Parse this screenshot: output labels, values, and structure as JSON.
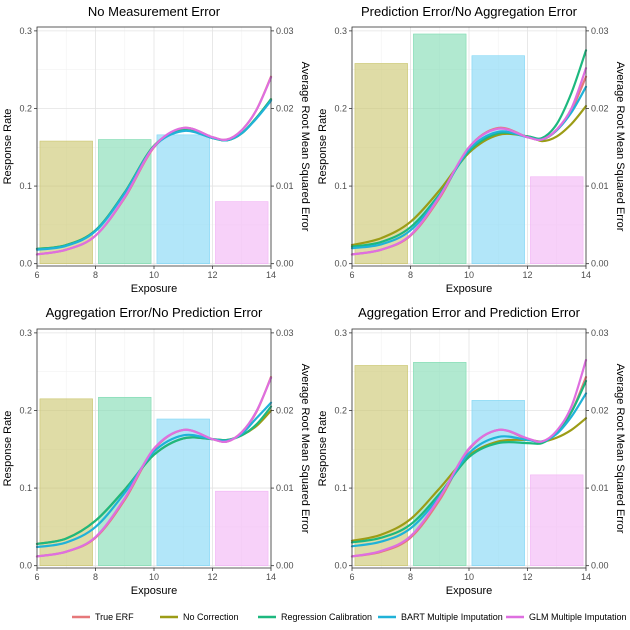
{
  "chart_data": {
    "type": "line+bar",
    "x_label": "Exposure",
    "y_left_label": "Response Rate",
    "y_right_label": "Average Root Mean Squared Error",
    "x_ticks": [
      "6",
      "8",
      "10",
      "12",
      "14"
    ],
    "x_range": [
      6,
      14
    ],
    "y_left_ticks": [
      "0.0",
      "0.1",
      "0.2",
      "0.3"
    ],
    "y_left_range": [
      -0.003,
      0.305
    ],
    "y_right_ticks": [
      "0.00",
      "0.01",
      "0.02",
      "0.03"
    ],
    "y_right_range": [
      -0.0003,
      0.0305
    ],
    "grid": true,
    "legend_position": "bottom",
    "legend": [
      {
        "name": "True ERF",
        "color": "#e6787a"
      },
      {
        "name": "No Correction",
        "color": "#9c9c16"
      },
      {
        "name": "Regression Calibration",
        "color": "#1db87f"
      },
      {
        "name": "BART Multiple Imputation",
        "color": "#20b2d8"
      },
      {
        "name": "GLM Multiple Imputation",
        "color": "#de6fe0"
      }
    ],
    "curve_x": [
      6,
      7,
      8,
      9,
      10,
      11,
      12,
      12.5,
      13,
      13.5,
      14
    ],
    "panels": [
      {
        "title": "No Measurement Error",
        "bars": [
          {
            "x0": 6.1,
            "x1": 7.9,
            "value": 0.0158,
            "color": "#c9c46b"
          },
          {
            "x0": 8.1,
            "x1": 9.9,
            "value": 0.016,
            "color": "#7ddbb0"
          },
          {
            "x0": 10.1,
            "x1": 11.9,
            "value": 0.0166,
            "color": "#7fd6f5"
          },
          {
            "x0": 12.1,
            "x1": 13.9,
            "value": 0.008,
            "color": "#f2b3f5"
          }
        ],
        "series": [
          {
            "name": "True ERF",
            "y": [
              0.012,
              0.018,
              0.036,
              0.085,
              0.15,
              0.175,
              0.163,
              0.16,
              0.172,
              0.198,
              0.241
            ]
          },
          {
            "name": "No Correction",
            "y": [
              0.019,
              0.024,
              0.043,
              0.092,
              0.152,
              0.172,
              0.162,
              0.159,
              0.168,
              0.188,
              0.212
            ]
          },
          {
            "name": "Regression Calibration",
            "y": [
              0.019,
              0.024,
              0.043,
              0.092,
              0.152,
              0.172,
              0.162,
              0.159,
              0.168,
              0.188,
              0.212
            ]
          },
          {
            "name": "BART Multiple Imputation",
            "y": [
              0.018,
              0.023,
              0.042,
              0.091,
              0.151,
              0.171,
              0.162,
              0.159,
              0.168,
              0.187,
              0.21
            ]
          },
          {
            "name": "GLM Multiple Imputation",
            "y": [
              0.012,
              0.018,
              0.036,
              0.086,
              0.151,
              0.175,
              0.163,
              0.16,
              0.172,
              0.198,
              0.24
            ]
          }
        ]
      },
      {
        "title": "Prediction Error/No Aggregation Error",
        "bars": [
          {
            "x0": 6.1,
            "x1": 7.9,
            "value": 0.0258,
            "color": "#c9c46b"
          },
          {
            "x0": 8.1,
            "x1": 9.9,
            "value": 0.0296,
            "color": "#7ddbb0"
          },
          {
            "x0": 10.1,
            "x1": 11.9,
            "value": 0.0268,
            "color": "#7fd6f5"
          },
          {
            "x0": 12.1,
            "x1": 13.9,
            "value": 0.0112,
            "color": "#f2b3f5"
          }
        ],
        "series": [
          {
            "name": "True ERF",
            "y": [
              0.012,
              0.018,
              0.036,
              0.085,
              0.15,
              0.175,
              0.163,
              0.16,
              0.172,
              0.198,
              0.241
            ]
          },
          {
            "name": "No Correction",
            "y": [
              0.024,
              0.033,
              0.054,
              0.095,
              0.143,
              0.166,
              0.164,
              0.158,
              0.164,
              0.18,
              0.203
            ]
          },
          {
            "name": "Regression Calibration",
            "y": [
              0.022,
              0.028,
              0.047,
              0.09,
              0.145,
              0.168,
              0.164,
              0.162,
              0.18,
              0.22,
              0.275
            ]
          },
          {
            "name": "BART Multiple Imputation",
            "y": [
              0.02,
              0.025,
              0.043,
              0.088,
              0.147,
              0.17,
              0.163,
              0.16,
              0.172,
              0.195,
              0.228
            ]
          },
          {
            "name": "GLM Multiple Imputation",
            "y": [
              0.012,
              0.018,
              0.037,
              0.087,
              0.15,
              0.174,
              0.163,
              0.16,
              0.173,
              0.2,
              0.252
            ]
          }
        ]
      },
      {
        "title": "Aggregation Error/No Prediction Error",
        "bars": [
          {
            "x0": 6.1,
            "x1": 7.9,
            "value": 0.0215,
            "color": "#c9c46b"
          },
          {
            "x0": 8.1,
            "x1": 9.9,
            "value": 0.0217,
            "color": "#7ddbb0"
          },
          {
            "x0": 10.1,
            "x1": 11.9,
            "value": 0.0189,
            "color": "#7fd6f5"
          },
          {
            "x0": 12.1,
            "x1": 13.9,
            "value": 0.0096,
            "color": "#f2b3f5"
          }
        ],
        "series": [
          {
            "name": "True ERF",
            "y": [
              0.012,
              0.018,
              0.036,
              0.085,
              0.15,
              0.175,
              0.163,
              0.16,
              0.172,
              0.198,
              0.243
            ]
          },
          {
            "name": "No Correction",
            "y": [
              0.028,
              0.035,
              0.058,
              0.098,
              0.143,
              0.164,
              0.163,
              0.162,
              0.168,
              0.18,
              0.2
            ]
          },
          {
            "name": "Regression Calibration",
            "y": [
              0.028,
              0.035,
              0.058,
              0.098,
              0.143,
              0.164,
              0.163,
              0.162,
              0.168,
              0.182,
              0.205
            ]
          },
          {
            "name": "BART Multiple Imputation",
            "y": [
              0.024,
              0.03,
              0.05,
              0.094,
              0.147,
              0.168,
              0.163,
              0.161,
              0.17,
              0.19,
              0.21
            ]
          },
          {
            "name": "GLM Multiple Imputation",
            "y": [
              0.012,
              0.018,
              0.037,
              0.087,
              0.151,
              0.175,
              0.163,
              0.16,
              0.172,
              0.199,
              0.242
            ]
          }
        ]
      },
      {
        "title": "Aggregation Error and Prediction Error",
        "bars": [
          {
            "x0": 6.1,
            "x1": 7.9,
            "value": 0.0258,
            "color": "#c9c46b"
          },
          {
            "x0": 8.1,
            "x1": 9.9,
            "value": 0.0262,
            "color": "#7ddbb0"
          },
          {
            "x0": 10.1,
            "x1": 11.9,
            "value": 0.0213,
            "color": "#7fd6f5"
          },
          {
            "x0": 12.1,
            "x1": 13.9,
            "value": 0.0117,
            "color": "#f2b3f5"
          }
        ],
        "series": [
          {
            "name": "True ERF",
            "y": [
              0.012,
              0.018,
              0.036,
              0.085,
              0.15,
              0.175,
              0.163,
              0.16,
              0.172,
              0.198,
              0.243
            ]
          },
          {
            "name": "No Correction",
            "y": [
              0.032,
              0.04,
              0.06,
              0.1,
              0.142,
              0.16,
              0.162,
              0.16,
              0.165,
              0.175,
              0.19
            ]
          },
          {
            "name": "Regression Calibration",
            "y": [
              0.03,
              0.036,
              0.053,
              0.093,
              0.14,
              0.158,
              0.158,
              0.158,
              0.172,
              0.198,
              0.238
            ]
          },
          {
            "name": "BART Multiple Imputation",
            "y": [
              0.025,
              0.031,
              0.048,
              0.09,
              0.145,
              0.166,
              0.162,
              0.16,
              0.17,
              0.192,
              0.222
            ]
          },
          {
            "name": "GLM Multiple Imputation",
            "y": [
              0.012,
              0.019,
              0.038,
              0.088,
              0.151,
              0.175,
              0.164,
              0.16,
              0.174,
              0.205,
              0.265
            ]
          }
        ]
      }
    ]
  }
}
